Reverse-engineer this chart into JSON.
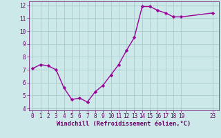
{
  "x": [
    0,
    1,
    2,
    3,
    4,
    5,
    6,
    7,
    8,
    9,
    10,
    11,
    12,
    13,
    14,
    15,
    16,
    17,
    18,
    19,
    23
  ],
  "y": [
    7.1,
    7.4,
    7.3,
    7.0,
    5.6,
    4.7,
    4.8,
    4.5,
    5.3,
    5.8,
    6.6,
    7.4,
    8.5,
    9.5,
    11.9,
    11.9,
    11.6,
    11.4,
    11.1,
    11.1,
    11.4
  ],
  "line_color": "#990099",
  "marker": "D",
  "marker_size": 2.2,
  "bg_color": "#cce8e8",
  "grid_color": "#aacccc",
  "xlabel": "Windchill (Refroidissement éolien,°C)",
  "xlabel_color": "#660066",
  "tick_color": "#660066",
  "ylim": [
    4,
    12
  ],
  "yticks": [
    4,
    5,
    6,
    7,
    8,
    9,
    10,
    11,
    12
  ],
  "xticks": [
    0,
    1,
    2,
    3,
    4,
    5,
    6,
    7,
    8,
    9,
    10,
    11,
    12,
    13,
    14,
    15,
    16,
    17,
    18,
    19,
    23
  ],
  "line_width": 1.0,
  "tick_fontsize": 5.5,
  "xlabel_fontsize": 6.2
}
